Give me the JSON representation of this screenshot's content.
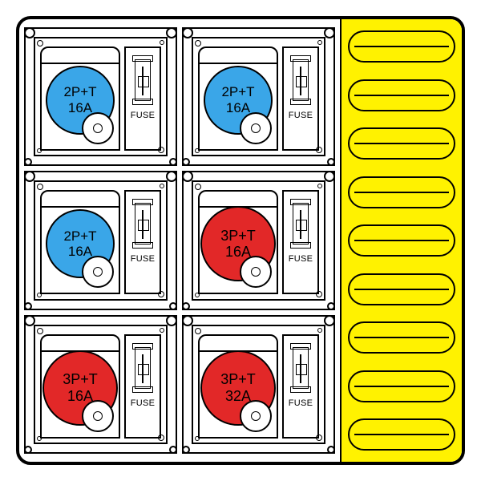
{
  "panel": {
    "background_color": "#ffffff",
    "border_color": "#000000",
    "breaker_col_color": "#fff200",
    "breaker_slot_count": 9
  },
  "colors": {
    "blue": "#3aa6e8",
    "red": "#e22828"
  },
  "fuse_label": "FUSE",
  "sockets": [
    {
      "line1": "2P+T",
      "line2": "16A",
      "color": "blue",
      "size": "small"
    },
    {
      "line1": "2P+T",
      "line2": "16A",
      "color": "blue",
      "size": "small"
    },
    {
      "line1": "2P+T",
      "line2": "16A",
      "color": "blue",
      "size": "small"
    },
    {
      "line1": "3P+T",
      "line2": "16A",
      "color": "red",
      "size": "big"
    },
    {
      "line1": "3P+T",
      "line2": "16A",
      "color": "red",
      "size": "big"
    },
    {
      "line1": "3P+T",
      "line2": "32A",
      "color": "red",
      "size": "big"
    }
  ]
}
